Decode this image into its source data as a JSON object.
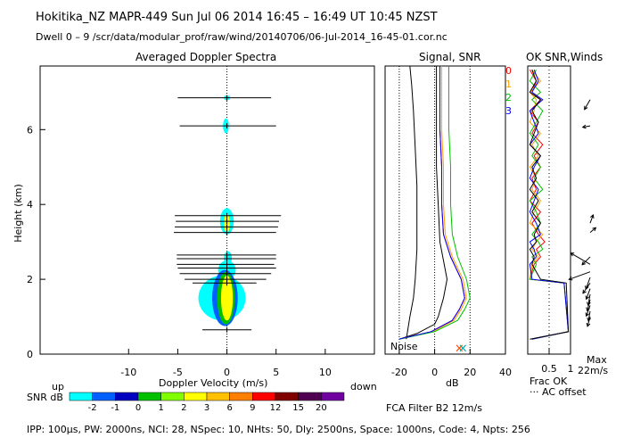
{
  "header": {
    "line1": "Hokitika_NZ  MAPR-449  Sun Jul 06 2014 16:45 – 16:49 UT 10:45 NZST",
    "line2": "Dwell  0 –  9   /scr/data/modular_prof/raw/wind/20140706/06-Jul-2014_16-45-01.cor.nc"
  },
  "footer": "IPP: 100μs,  PW: 2000ns,  NCI:  28,  NSpec: 10, NHts: 50,  Dly: 2500ns,  Space: 1000ns,  Code: 4,  Npts: 256",
  "chart_data": [
    {
      "id": "spectra",
      "type": "heatmap",
      "title": "Averaged Doppler Spectra",
      "xlabel": "Doppler Velocity (m/s)",
      "ylabel": "Height (km)",
      "xlim": [
        -19,
        15
      ],
      "ylim": [
        0,
        7.7
      ],
      "x_ticks": [
        -10,
        -5,
        0,
        5,
        10
      ],
      "y_ticks": [
        0,
        2,
        4,
        6
      ],
      "x_end_labels": {
        "left": "up",
        "right": "down"
      },
      "width_bars": [
        {
          "height_km": 6.85,
          "vmin": -5,
          "vmax": 4.5
        },
        {
          "height_km": 6.1,
          "vmin": -4.8,
          "vmax": 5
        },
        {
          "height_km": 3.7,
          "vmin": -5.3,
          "vmax": 5.5
        },
        {
          "height_km": 3.55,
          "vmin": -5.2,
          "vmax": 5.3
        },
        {
          "height_km": 3.4,
          "vmin": -5.3,
          "vmax": 5.2
        },
        {
          "height_km": 3.25,
          "vmin": -5.4,
          "vmax": 5
        },
        {
          "height_km": 2.65,
          "vmin": -5.1,
          "vmax": 5
        },
        {
          "height_km": 2.55,
          "vmin": -5.1,
          "vmax": 5
        },
        {
          "height_km": 2.4,
          "vmin": -5.1,
          "vmax": 4.8
        },
        {
          "height_km": 2.3,
          "vmin": -5,
          "vmax": 5
        },
        {
          "height_km": 2.15,
          "vmin": -4.8,
          "vmax": 4.5
        },
        {
          "height_km": 2.0,
          "vmin": -4.3,
          "vmax": 4
        },
        {
          "height_km": 1.9,
          "vmin": -3.5,
          "vmax": 3
        },
        {
          "height_km": 0.65,
          "vmin": -2.5,
          "vmax": 2.5
        }
      ],
      "echo_blobs": [
        {
          "h": 6.85,
          "v": 0,
          "dv": 0.3,
          "dh": 0.07,
          "snr": -2
        },
        {
          "h": 6.1,
          "v": -0.1,
          "dv": 0.3,
          "dh": 0.2,
          "snr": -2
        },
        {
          "h": 3.55,
          "v": 0,
          "dv": 0.7,
          "dh": 0.35,
          "snr": -2
        },
        {
          "h": 3.5,
          "v": 0,
          "dv": 0.3,
          "dh": 0.25,
          "snr": 3
        },
        {
          "h": 2.55,
          "v": 0.1,
          "dv": 0.4,
          "dh": 0.2,
          "snr": -2
        },
        {
          "h": 2.25,
          "v": 0,
          "dv": 0.9,
          "dh": 0.25,
          "snr": -2
        },
        {
          "h": 1.5,
          "v": -0.5,
          "dv": 2.4,
          "dh": 0.6,
          "snr": -2
        },
        {
          "h": 1.5,
          "v": -0.2,
          "dv": 1.3,
          "dh": 0.75,
          "snr": -1
        },
        {
          "h": 1.5,
          "v": -0.1,
          "dv": 0.9,
          "dh": 0.7,
          "snr": 1
        },
        {
          "h": 1.5,
          "v": 0,
          "dv": 0.6,
          "dh": 0.6,
          "snr": 3
        }
      ],
      "colorbar": {
        "label": "SNR dB",
        "levels": [
          "-2",
          "-1",
          "0",
          "1",
          "2",
          "3",
          "6",
          "9",
          "12",
          "15",
          "20"
        ],
        "colors": [
          "#00ffff",
          "#0060ff",
          "#0000c0",
          "#00c000",
          "#80ff00",
          "#ffff00",
          "#ffc000",
          "#ff8000",
          "#ff0000",
          "#800000",
          "#500050",
          "#7000a0"
        ]
      }
    },
    {
      "id": "signal",
      "type": "line",
      "title": "Signal, SNR",
      "xlabel": "dB",
      "xlim": [
        -28,
        40
      ],
      "ylim": [
        0,
        7.7
      ],
      "x_ticks": [
        -20,
        0,
        20,
        40
      ],
      "dotted_x": [
        -20,
        0,
        20
      ],
      "noise_label": "Noise",
      "noise_markers": [
        {
          "x": 14,
          "color": "#ff4500"
        },
        {
          "x": 16,
          "color": "#00a0a0"
        }
      ],
      "series": [
        {
          "name": "noise",
          "color": "#000000",
          "x": [
            -16,
            -14,
            -12,
            -11,
            -10,
            -10,
            -10,
            -11,
            -12,
            -13,
            -14
          ],
          "y": [
            0.4,
            1,
            1.5,
            2,
            2.8,
            3.5,
            4.5,
            5.5,
            6.5,
            7.2,
            7.7
          ]
        },
        {
          "name": "signal",
          "color": "#000000",
          "x": [
            -20,
            -10,
            0,
            2,
            5,
            7,
            5,
            3,
            2,
            1,
            1,
            1,
            1
          ],
          "y": [
            0.4,
            0.55,
            0.8,
            1,
            1.5,
            2,
            2.5,
            3,
            4,
            5,
            6,
            7,
            7.7
          ]
        },
        {
          "name": "snr0",
          "color": "#ff0000",
          "x": [
            -20,
            -2,
            10,
            14,
            17,
            15,
            9,
            5,
            4,
            4,
            3,
            3,
            3
          ],
          "y": [
            0.4,
            0.6,
            0.9,
            1.2,
            1.5,
            2,
            2.6,
            3.2,
            4,
            5,
            6,
            7,
            7.7
          ]
        },
        {
          "name": "snr1",
          "color": "#ffa000",
          "x": [
            -20,
            -1,
            11,
            15,
            18,
            16,
            10,
            6,
            5,
            5,
            4,
            4,
            4
          ],
          "y": [
            0.4,
            0.6,
            0.9,
            1.2,
            1.5,
            2,
            2.6,
            3.2,
            4,
            5,
            6,
            7,
            7.7
          ]
        },
        {
          "name": "snr2",
          "color": "#00c000",
          "x": [
            -20,
            0,
            13,
            17,
            20,
            18,
            13,
            10,
            9,
            9,
            8,
            8,
            8
          ],
          "y": [
            0.4,
            0.6,
            0.9,
            1.2,
            1.5,
            2,
            2.6,
            3.2,
            4,
            5,
            6,
            7,
            7.7
          ]
        },
        {
          "name": "snr3",
          "color": "#0000ff",
          "x": [
            -20,
            -2,
            10,
            14,
            17,
            15,
            9,
            5,
            4,
            4,
            3,
            3,
            3
          ],
          "y": [
            0.4,
            0.6,
            0.9,
            1.2,
            1.5,
            2,
            2.6,
            3.2,
            4,
            5,
            6,
            7,
            7.7
          ]
        }
      ]
    },
    {
      "id": "winds",
      "type": "line",
      "title": "OK SNR,Winds",
      "xlim": [
        0,
        1
      ],
      "ylim": [
        0,
        7.7
      ],
      "x_tick_labels": [
        "0.5",
        "1"
      ],
      "legend": [
        {
          "label": "0",
          "color": "#ff0000"
        },
        {
          "label": "1",
          "color": "#ffa000"
        },
        {
          "label": "2",
          "color": "#00c000"
        },
        {
          "label": "3",
          "color": "#0000ff"
        }
      ],
      "frac_ok_label": "Frac OK",
      "ac_offset_label": "··· AC offset",
      "max_label": "Max",
      "max_value": "22m/s",
      "series": [
        {
          "name": "0",
          "color": "#ff0000",
          "x": [
            0.05,
            0.2,
            0.1,
            0.3,
            0.05,
            0.25,
            0.1,
            0.35,
            0.15,
            0.3,
            0.1,
            0.2,
            0.05,
            0.3,
            0.1,
            0.25,
            0.4,
            0.2,
            0.3,
            0.15,
            0.05,
            0.85,
            0.95,
            0.1
          ],
          "y": [
            7.6,
            7.3,
            7.0,
            6.8,
            6.5,
            6.2,
            5.9,
            5.6,
            5.3,
            5.0,
            4.7,
            4.4,
            4.1,
            3.8,
            3.5,
            3.2,
            3.0,
            2.8,
            2.6,
            2.4,
            2.0,
            1.9,
            0.6,
            0.4
          ]
        },
        {
          "name": "1",
          "color": "#ffa000",
          "x": [
            0.1,
            0.3,
            0.05,
            0.2,
            0.15,
            0.05,
            0.3,
            0.1,
            0.25,
            0.05,
            0.2,
            0.1,
            0.3,
            0.15,
            0.05,
            0.35,
            0.2,
            0.1,
            0.25,
            0.1,
            0.05,
            0.85,
            0.95,
            0.1
          ],
          "y": [
            7.6,
            7.3,
            7.0,
            6.8,
            6.5,
            6.2,
            5.9,
            5.6,
            5.3,
            5.0,
            4.7,
            4.4,
            4.1,
            3.8,
            3.5,
            3.2,
            3.0,
            2.8,
            2.6,
            2.4,
            2.0,
            1.9,
            0.6,
            0.4
          ]
        },
        {
          "name": "2",
          "color": "#00c000",
          "x": [
            0.2,
            0.05,
            0.3,
            0.1,
            0.35,
            0.2,
            0.05,
            0.25,
            0.1,
            0.3,
            0.15,
            0.35,
            0.05,
            0.2,
            0.3,
            0.1,
            0.25,
            0.35,
            0.1,
            0.2,
            0.05,
            0.85,
            0.95,
            0.1
          ],
          "y": [
            7.6,
            7.3,
            7.0,
            6.8,
            6.5,
            6.2,
            5.9,
            5.6,
            5.3,
            5.0,
            4.7,
            4.4,
            4.1,
            3.8,
            3.5,
            3.2,
            3.0,
            2.8,
            2.6,
            2.4,
            2.0,
            1.9,
            0.6,
            0.4
          ]
        },
        {
          "name": "3",
          "color": "#0000ff",
          "x": [
            0.15,
            0.25,
            0.1,
            0.35,
            0.05,
            0.15,
            0.25,
            0.05,
            0.3,
            0.15,
            0.05,
            0.25,
            0.15,
            0.05,
            0.2,
            0.3,
            0.05,
            0.15,
            0.2,
            0.05,
            0.1,
            0.85,
            0.95,
            0.1
          ],
          "y": [
            7.6,
            7.3,
            7.0,
            6.8,
            6.5,
            6.2,
            5.9,
            5.6,
            5.3,
            5.0,
            4.7,
            4.4,
            4.1,
            3.8,
            3.5,
            3.2,
            3.0,
            2.8,
            2.6,
            2.4,
            2.0,
            1.9,
            0.6,
            0.4
          ]
        },
        {
          "name": "frac_ok",
          "color": "#000000",
          "x": [
            0.1,
            0.2,
            0.05,
            0.3,
            0.1,
            0.25,
            0.15,
            0.05,
            0.3,
            0.1,
            0.2,
            0.05,
            0.25,
            0.1,
            0.3,
            0.15,
            0.2,
            0.05,
            0.15,
            0.1,
            0.3,
            0.9,
            0.95,
            0.05
          ],
          "y": [
            7.6,
            7.3,
            7.0,
            6.8,
            6.5,
            6.2,
            5.9,
            5.6,
            5.3,
            5.0,
            4.7,
            4.4,
            4.1,
            3.8,
            3.5,
            3.2,
            3.0,
            2.8,
            2.6,
            2.4,
            2.0,
            1.9,
            0.6,
            0.4
          ]
        }
      ],
      "wind_barbs": [
        {
          "h": 6.8,
          "speed_frac": 0.45,
          "dir_deg": 210
        },
        {
          "h": 6.1,
          "speed_frac": 0.3,
          "dir_deg": 260
        },
        {
          "h": 3.5,
          "speed_frac": 0.35,
          "dir_deg": 20
        },
        {
          "h": 3.25,
          "speed_frac": 0.3,
          "dir_deg": 50
        },
        {
          "h": 2.6,
          "speed_frac": 0.45,
          "dir_deg": 225
        },
        {
          "h": 2.4,
          "speed_frac": 0.9,
          "dir_deg": 300
        },
        {
          "h": 2.2,
          "speed_frac": 0.9,
          "dir_deg": 250
        },
        {
          "h": 2.05,
          "speed_frac": 0.5,
          "dir_deg": 200
        },
        {
          "h": 1.9,
          "speed_frac": 0.5,
          "dir_deg": 215
        },
        {
          "h": 1.75,
          "speed_frac": 0.45,
          "dir_deg": 200
        },
        {
          "h": 1.6,
          "speed_frac": 0.45,
          "dir_deg": 190
        },
        {
          "h": 1.45,
          "speed_frac": 0.45,
          "dir_deg": 195
        },
        {
          "h": 1.3,
          "speed_frac": 0.45,
          "dir_deg": 200
        },
        {
          "h": 1.15,
          "speed_frac": 0.4,
          "dir_deg": 190
        },
        {
          "h": 1.0,
          "speed_frac": 0.4,
          "dir_deg": 195
        }
      ]
    }
  ],
  "filter_label": "FCA Filter B2 12m/s"
}
